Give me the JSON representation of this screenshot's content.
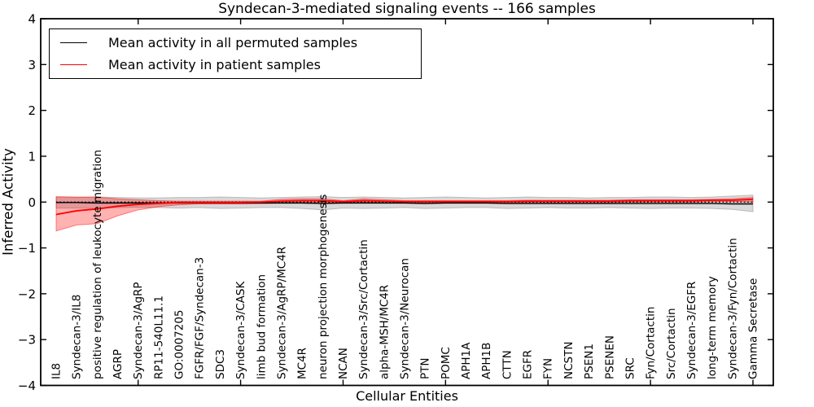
{
  "legend": {
    "items": [
      {
        "label": "Mean activity in all permuted samples",
        "color": "#000000"
      },
      {
        "label": "Mean activity in patient samples",
        "color": "#ff0000"
      }
    ]
  },
  "chart_data": {
    "type": "line",
    "title": "Syndecan-3-mediated signaling events -- 166 samples",
    "xlabel": "Cellular Entities",
    "ylabel": "Inferred Activity",
    "ylim": [
      -4,
      4
    ],
    "yticks": [
      4,
      3,
      2,
      1,
      0,
      -1,
      -2,
      -3,
      -4
    ],
    "grid": false,
    "legend_position": "upper left",
    "xtick_major_indices": [
      4,
      9,
      14,
      19,
      24,
      29,
      34
    ],
    "categories": [
      "IL8",
      "Syndecan-3/IL8",
      "positive regulation of leukocyte migration",
      "AGRP",
      "Syndecan-3/AgRP",
      "RP11-540L11.1",
      "GO:0007205",
      "FGFR/FGF/Syndecan-3",
      "SDC3",
      "Syndecan-3/CASK",
      "limb bud formation",
      "Syndecan-3/AgRP/MC4R",
      "MC4R",
      "neuron projection morphogenesis",
      "NCAN",
      "Syndecan-3/Src/Cortactin",
      "alpha-MSH/MC4R",
      "Syndecan-3/Neurocan",
      "PTN",
      "POMC",
      "APH1A",
      "APH1B",
      "CTTN",
      "EGFR",
      "FYN",
      "NCSTN",
      "PSEN1",
      "PSENEN",
      "SRC",
      "Fyn/Cortactin",
      "Src/Cortactin",
      "Syndecan-3/EGFR",
      "long-term memory",
      "Syndecan-3/Fyn/Cortactin",
      "Gamma Secretase"
    ],
    "series": [
      {
        "name": "Mean activity in all permuted samples",
        "color": "#000000",
        "values": [
          -0.01,
          -0.01,
          -0.02,
          -0.02,
          -0.02,
          -0.02,
          -0.02,
          -0.02,
          -0.02,
          -0.02,
          -0.02,
          -0.02,
          -0.02,
          -0.03,
          -0.02,
          -0.02,
          -0.02,
          -0.02,
          -0.03,
          -0.02,
          -0.02,
          -0.02,
          -0.03,
          -0.03,
          -0.03,
          -0.03,
          -0.03,
          -0.03,
          -0.03,
          -0.03,
          -0.03,
          -0.03,
          -0.03,
          -0.04,
          -0.04
        ]
      },
      {
        "name": "Mean activity in patient samples",
        "color": "#ff0000",
        "values": [
          -0.27,
          -0.19,
          -0.15,
          -0.09,
          -0.05,
          -0.03,
          -0.01,
          -0.01,
          -0.01,
          -0.01,
          0.0,
          0.02,
          0.03,
          0.03,
          0.01,
          0.03,
          0.02,
          0.01,
          0.01,
          0.01,
          0.01,
          0.01,
          0.01,
          0.02,
          0.02,
          0.02,
          0.02,
          0.02,
          0.03,
          0.03,
          0.03,
          0.03,
          0.04,
          0.04,
          0.06
        ]
      }
    ],
    "bands": [
      {
        "name": "permuted-range",
        "color": "#808080",
        "opacity": 0.3,
        "upper": [
          0.1,
          0.1,
          0.11,
          0.1,
          0.09,
          0.09,
          0.1,
          0.1,
          0.11,
          0.1,
          0.09,
          0.1,
          0.11,
          0.12,
          0.1,
          0.11,
          0.1,
          0.09,
          0.1,
          0.11,
          0.1,
          0.09,
          0.1,
          0.11,
          0.1,
          0.1,
          0.09,
          0.1,
          0.1,
          0.11,
          0.11,
          0.1,
          0.11,
          0.13,
          0.15
        ],
        "lower": [
          -0.13,
          -0.13,
          -0.14,
          -0.12,
          -0.11,
          -0.12,
          -0.13,
          -0.12,
          -0.14,
          -0.13,
          -0.12,
          -0.12,
          -0.14,
          -0.17,
          -0.13,
          -0.14,
          -0.13,
          -0.12,
          -0.14,
          -0.13,
          -0.12,
          -0.12,
          -0.14,
          -0.13,
          -0.12,
          -0.13,
          -0.13,
          -0.12,
          -0.13,
          -0.14,
          -0.13,
          -0.13,
          -0.14,
          -0.16,
          -0.21
        ]
      },
      {
        "name": "patient-range",
        "color": "#ff0000",
        "opacity": 0.3,
        "upper": [
          0.12,
          0.11,
          0.11,
          0.07,
          0.05,
          0.03,
          0.02,
          0.02,
          0.02,
          0.02,
          0.02,
          0.06,
          0.07,
          0.07,
          0.03,
          0.07,
          0.05,
          0.03,
          0.03,
          0.03,
          0.03,
          0.03,
          0.03,
          0.04,
          0.04,
          0.04,
          0.04,
          0.04,
          0.05,
          0.05,
          0.05,
          0.05,
          0.06,
          0.07,
          0.1
        ],
        "lower": [
          -0.63,
          -0.5,
          -0.47,
          -0.3,
          -0.17,
          -0.1,
          -0.06,
          -0.04,
          -0.04,
          -0.04,
          -0.03,
          -0.02,
          -0.02,
          -0.01,
          -0.02,
          -0.01,
          -0.02,
          -0.02,
          -0.02,
          -0.02,
          -0.02,
          -0.02,
          -0.02,
          -0.01,
          -0.01,
          -0.01,
          -0.01,
          -0.01,
          0.0,
          0.0,
          0.0,
          0.0,
          0.01,
          0.01,
          0.0
        ]
      }
    ],
    "zero_line": {
      "style": "dotted",
      "color": "#000000",
      "y": 0
    }
  }
}
